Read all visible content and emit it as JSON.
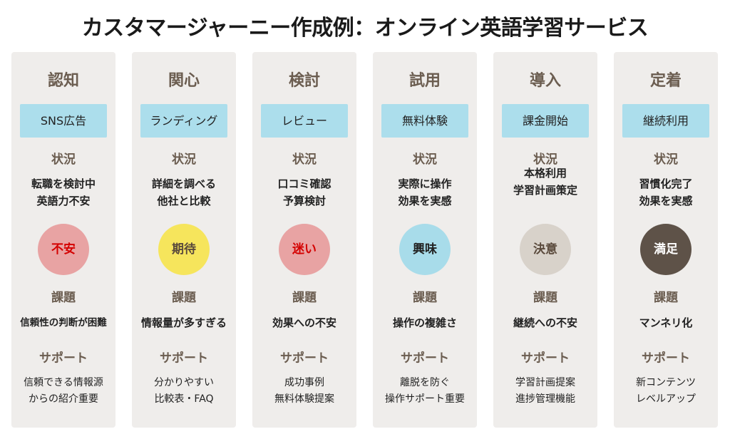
{
  "title": "カスタマージャーニー作成例：オンライン英語学習サービス",
  "labels": {
    "situation": "状況",
    "issue": "課題",
    "support": "サポート"
  },
  "stages": [
    {
      "name": "認知",
      "touchpoint": "SNS広告",
      "situation": "転職を検討中\n英語力不安",
      "emotion": "不安",
      "emotion_bg": "#e8a3a3",
      "emotion_fg": "#d40000",
      "issue": "信頼性の判断が困難",
      "support": "信頼できる情報源\nからの紹介重要"
    },
    {
      "name": "関心",
      "touchpoint": "ランディング",
      "situation": "詳細を調べる\n他社と比較",
      "emotion": "期待",
      "emotion_bg": "#f6e55c",
      "emotion_fg": "#5a4a3c",
      "issue": "情報量が多すぎる",
      "support": "分かりやすい\n比較表・FAQ"
    },
    {
      "name": "検討",
      "touchpoint": "レビュー",
      "situation": "口コミ確認\n予算検討",
      "emotion": "迷い",
      "emotion_bg": "#e8a3a3",
      "emotion_fg": "#d40000",
      "issue": "効果への不安",
      "support": "成功事例\n無料体験提案"
    },
    {
      "name": "試用",
      "touchpoint": "無料体験",
      "situation": "実際に操作\n効果を実感",
      "emotion": "興味",
      "emotion_bg": "#a8dcea",
      "emotion_fg": "#222222",
      "issue": "操作の複雑さ",
      "support": "離脱を防ぐ\n操作サポート重要"
    },
    {
      "name": "導入",
      "touchpoint": "課金開始",
      "situation": "本格利用\n学習計画策定",
      "emotion": "決意",
      "emotion_bg": "#d8d2ca",
      "emotion_fg": "#5a4a3c",
      "issue": "継続への不安",
      "support": "学習計画提案\n進捗管理機能"
    },
    {
      "name": "定着",
      "touchpoint": "継続利用",
      "situation": "習慣化完了\n効果を実感",
      "emotion": "満足",
      "emotion_bg": "#5e5248",
      "emotion_fg": "#ffffff",
      "issue": "マンネリ化",
      "support": "新コンテンツ\nレベルアップ"
    }
  ]
}
